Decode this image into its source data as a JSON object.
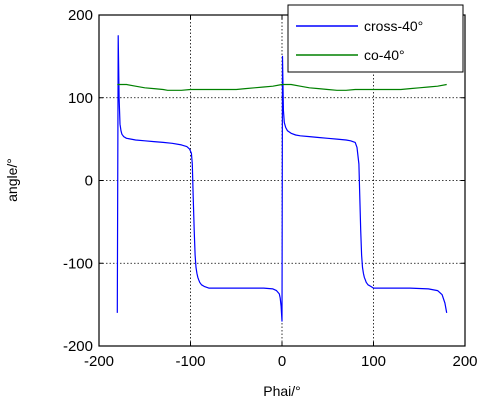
{
  "chart_data": {
    "type": "line",
    "title": "",
    "xlabel": "Phai/°",
    "ylabel": "angle/°",
    "xlim": [
      -200,
      200
    ],
    "ylim": [
      -200,
      200
    ],
    "grid": true,
    "legend_position": "top-right",
    "x_ticks": [
      -200,
      -100,
      0,
      100,
      200
    ],
    "y_ticks": [
      -200,
      -100,
      0,
      100,
      200
    ],
    "x_tick_labels": [
      "-200",
      "-100",
      "0",
      "100",
      "200"
    ],
    "y_tick_labels": [
      "-200",
      "-100",
      "0",
      "100",
      "200"
    ],
    "series": [
      {
        "name": "cross-40°",
        "color": "#0000ff",
        "points": [
          [
            -180,
            -160
          ],
          [
            -179,
            175
          ],
          [
            -178,
            100
          ],
          [
            -177,
            68
          ],
          [
            -176,
            60
          ],
          [
            -175,
            56
          ],
          [
            -173,
            53
          ],
          [
            -170,
            51
          ],
          [
            -165,
            50
          ],
          [
            -160,
            49
          ],
          [
            -150,
            48
          ],
          [
            -140,
            47
          ],
          [
            -130,
            46
          ],
          [
            -120,
            45
          ],
          [
            -110,
            43
          ],
          [
            -104,
            41
          ],
          [
            -101,
            38
          ],
          [
            -99,
            33
          ],
          [
            -98,
            20
          ],
          [
            -97,
            -20
          ],
          [
            -96,
            -60
          ],
          [
            -95,
            -90
          ],
          [
            -94,
            -105
          ],
          [
            -93,
            -112
          ],
          [
            -92,
            -117
          ],
          [
            -91,
            -120
          ],
          [
            -90,
            -123
          ],
          [
            -88,
            -126
          ],
          [
            -85,
            -128
          ],
          [
            -80,
            -130
          ],
          [
            -60,
            -130
          ],
          [
            -40,
            -130
          ],
          [
            -20,
            -130
          ],
          [
            -10,
            -131
          ],
          [
            -6,
            -133
          ],
          [
            -3,
            -137
          ],
          [
            -2,
            -142
          ],
          [
            -1,
            -152
          ],
          [
            0,
            -170
          ],
          [
            0.6,
            150
          ],
          [
            1.5,
            85
          ],
          [
            2.5,
            70
          ],
          [
            4,
            64
          ],
          [
            6,
            60
          ],
          [
            10,
            57
          ],
          [
            15,
            55
          ],
          [
            20,
            54
          ],
          [
            30,
            53
          ],
          [
            40,
            52
          ],
          [
            50,
            51
          ],
          [
            60,
            50
          ],
          [
            70,
            49
          ],
          [
            75,
            48
          ],
          [
            80,
            46
          ],
          [
            82,
            40
          ],
          [
            84,
            20
          ],
          [
            85,
            -20
          ],
          [
            86,
            -60
          ],
          [
            87,
            -90
          ],
          [
            88,
            -105
          ],
          [
            89,
            -112
          ],
          [
            90,
            -117
          ],
          [
            91,
            -120
          ],
          [
            92,
            -123
          ],
          [
            94,
            -126
          ],
          [
            97,
            -128
          ],
          [
            100,
            -130
          ],
          [
            120,
            -130
          ],
          [
            140,
            -130
          ],
          [
            160,
            -131
          ],
          [
            170,
            -133
          ],
          [
            175,
            -138
          ],
          [
            178,
            -148
          ],
          [
            180,
            -160
          ]
        ]
      },
      {
        "name": "co-40°",
        "color": "#008000",
        "points": [
          [
            -180,
            116
          ],
          [
            -170,
            116
          ],
          [
            -160,
            114
          ],
          [
            -150,
            112
          ],
          [
            -140,
            111
          ],
          [
            -130,
            110
          ],
          [
            -125,
            109
          ],
          [
            -120,
            109
          ],
          [
            -110,
            109
          ],
          [
            -100,
            110
          ],
          [
            -90,
            110
          ],
          [
            -80,
            110
          ],
          [
            -70,
            110
          ],
          [
            -60,
            110
          ],
          [
            -50,
            110
          ],
          [
            -40,
            111
          ],
          [
            -30,
            112
          ],
          [
            -20,
            113
          ],
          [
            -10,
            114
          ],
          [
            0,
            116
          ],
          [
            10,
            116
          ],
          [
            20,
            114
          ],
          [
            30,
            112
          ],
          [
            40,
            111
          ],
          [
            50,
            110
          ],
          [
            60,
            109
          ],
          [
            70,
            109
          ],
          [
            80,
            110
          ],
          [
            90,
            110
          ],
          [
            100,
            110
          ],
          [
            110,
            110
          ],
          [
            120,
            110
          ],
          [
            130,
            110
          ],
          [
            140,
            111
          ],
          [
            150,
            112
          ],
          [
            160,
            113
          ],
          [
            170,
            114
          ],
          [
            180,
            116
          ]
        ]
      }
    ]
  }
}
